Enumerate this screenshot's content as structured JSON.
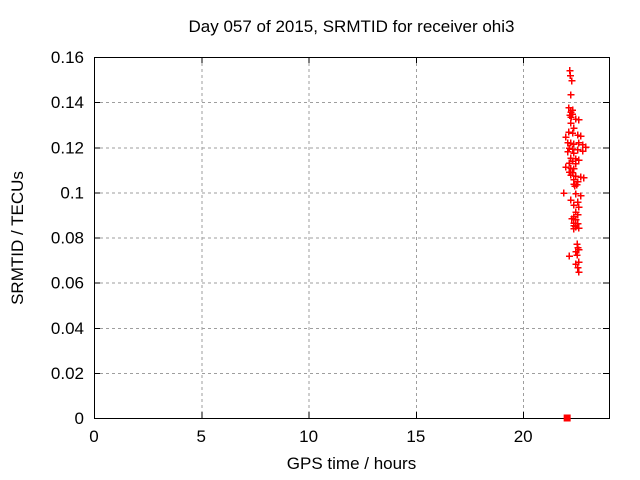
{
  "title": "Day 057 of 2015, SRMTID for receiver ohi3",
  "chart_data": {
    "type": "scatter",
    "title": "Day 057 of 2015, SRMTID for receiver ohi3",
    "xlabel": "GPS time / hours",
    "ylabel": "SRMTID / TECUs",
    "xlim": [
      0,
      24
    ],
    "ylim": [
      0,
      0.16
    ],
    "xticks": [
      0,
      5,
      10,
      15,
      20
    ],
    "xticklabels": [
      "0",
      "5",
      "10",
      "15",
      "20"
    ],
    "yticks": [
      0,
      0.02,
      0.04,
      0.06,
      0.08,
      0.1,
      0.12,
      0.14,
      0.16
    ],
    "yticklabels": [
      "0",
      "0.02",
      "0.04",
      "0.06",
      "0.08",
      "0.1",
      "0.12",
      "0.14",
      "0.16"
    ],
    "grid": true,
    "legend": "none",
    "colors": {
      "marker": "#ff0000",
      "grid": "#9e9e9e",
      "axis": "#000000",
      "background": "#ffffff"
    },
    "series": [
      {
        "name": "srmtid-points",
        "marker": "plus",
        "color": "#ff0000",
        "points": [
          [
            22.18,
            0.154
          ],
          [
            22.2,
            0.1518
          ],
          [
            22.27,
            0.1494
          ],
          [
            22.22,
            0.1432
          ],
          [
            22.13,
            0.1374
          ],
          [
            22.31,
            0.1365
          ],
          [
            22.22,
            0.1356
          ],
          [
            22.29,
            0.1347
          ],
          [
            22.18,
            0.1341
          ],
          [
            22.24,
            0.1334
          ],
          [
            22.46,
            0.1325
          ],
          [
            22.6,
            0.1321
          ],
          [
            22.22,
            0.1307
          ],
          [
            22.36,
            0.1285
          ],
          [
            22.13,
            0.1267
          ],
          [
            22.31,
            0.1263
          ],
          [
            22.55,
            0.1254
          ],
          [
            22.69,
            0.1249
          ],
          [
            21.99,
            0.1245
          ],
          [
            22.08,
            0.1219
          ],
          [
            22.22,
            0.1218
          ],
          [
            22.6,
            0.1219
          ],
          [
            22.36,
            0.1214
          ],
          [
            22.78,
            0.121
          ],
          [
            22.92,
            0.1201
          ],
          [
            22.15,
            0.1196
          ],
          [
            22.31,
            0.1192
          ],
          [
            22.55,
            0.1188
          ],
          [
            22.78,
            0.1183
          ],
          [
            22.08,
            0.1179
          ],
          [
            22.36,
            0.1174
          ],
          [
            22.22,
            0.1152
          ],
          [
            22.46,
            0.1148
          ],
          [
            22.6,
            0.1143
          ],
          [
            22.31,
            0.1139
          ],
          [
            22.15,
            0.113
          ],
          [
            22.46,
            0.1126
          ],
          [
            21.99,
            0.1112
          ],
          [
            22.22,
            0.1108
          ],
          [
            22.36,
            0.1104
          ],
          [
            22.15,
            0.109
          ],
          [
            22.31,
            0.1086
          ],
          [
            22.22,
            0.1077
          ],
          [
            22.46,
            0.1072
          ],
          [
            22.69,
            0.1068
          ],
          [
            22.83,
            0.1064
          ],
          [
            22.36,
            0.1055
          ],
          [
            22.55,
            0.1046
          ],
          [
            22.36,
            0.1037
          ],
          [
            22.5,
            0.1033
          ],
          [
            22.41,
            0.1028
          ],
          [
            21.9,
            0.0997
          ],
          [
            22.46,
            0.0993
          ],
          [
            22.69,
            0.0984
          ],
          [
            22.22,
            0.0966
          ],
          [
            22.55,
            0.0957
          ],
          [
            22.36,
            0.0944
          ],
          [
            22.6,
            0.0935
          ],
          [
            22.46,
            0.0913
          ],
          [
            22.55,
            0.09
          ],
          [
            22.36,
            0.0891
          ],
          [
            22.27,
            0.0882
          ],
          [
            22.46,
            0.0878
          ],
          [
            22.36,
            0.0864
          ],
          [
            22.55,
            0.086
          ],
          [
            22.36,
            0.0851
          ],
          [
            22.45,
            0.0847
          ],
          [
            22.6,
            0.0842
          ],
          [
            22.36,
            0.0838
          ],
          [
            22.51,
            0.0771
          ],
          [
            22.55,
            0.0754
          ],
          [
            22.6,
            0.0745
          ],
          [
            22.46,
            0.0736
          ],
          [
            22.51,
            0.0722
          ],
          [
            22.15,
            0.0718
          ],
          [
            22.6,
            0.0691
          ],
          [
            22.46,
            0.0682
          ],
          [
            22.55,
            0.0665
          ],
          [
            22.6,
            0.0647
          ]
        ]
      },
      {
        "name": "baseline-marker",
        "marker": "filled-square",
        "color": "#ff0000",
        "points": [
          [
            22.05,
            0
          ]
        ]
      }
    ]
  }
}
